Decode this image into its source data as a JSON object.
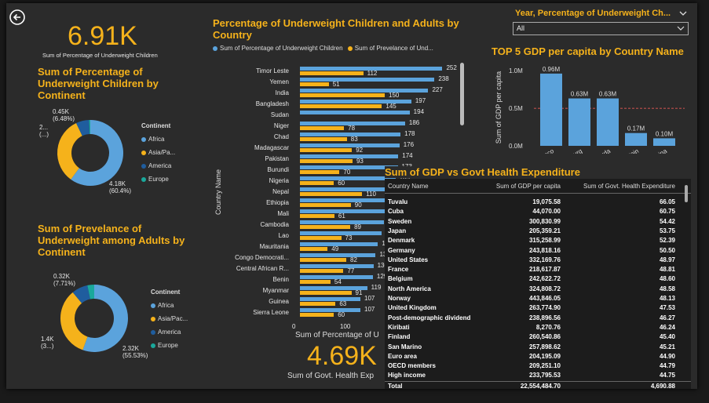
{
  "kpi_top": {
    "value": "6.91K",
    "label": "Sum of Percentage of Underweight Children"
  },
  "kpi_bottom": {
    "value": "4.69K",
    "label": "Sum of Govt. Health Exp"
  },
  "donut1": {
    "title": "Sum of Percentage of Underweight Children by Continent",
    "legend_title": "Continent",
    "legend": [
      "Africa",
      "Asia/Pa...",
      "America",
      "Europe"
    ],
    "labels": {
      "africa": "4.18K\n(60.4%)",
      "asia": "2...\n(...)",
      "america": "0.45K\n(6.48%)"
    },
    "label_africa_1": "4.18K",
    "label_africa_2": "(60.4%)",
    "label_asia_1": "2...",
    "label_asia_2": "(...)",
    "label_america_1": "0.45K",
    "label_america_2": "(6.48%)",
    "colors": {
      "Africa": "#5ba3dc",
      "Asia": "#f5b21b",
      "America": "#1f5d9e",
      "Europe": "#1aa89b"
    },
    "values": [
      60.4,
      33.12,
      6.48,
      0.0
    ]
  },
  "donut2": {
    "title": "Sum of Prevelance of Underweight among Adults by Continent",
    "legend_title": "Continent",
    "legend": [
      "Africa",
      "Asia/Pac...",
      "America",
      "Europe"
    ],
    "label_africa_1": "2.32K",
    "label_africa_2": "(55.53%)",
    "label_asia_1": "1.4K",
    "label_asia_2": "(3...)",
    "label_america_1": "0.32K",
    "label_america_2": "(7.71%)",
    "values": [
      55.53,
      33.5,
      7.71,
      3.26
    ]
  },
  "bar_chart": {
    "title": "Percentage of Underweight Children and Adults by Country",
    "legend": [
      "Sum of Percentage of Underweight Children",
      "Sum of Prevelance of Und..."
    ],
    "y_axis_title": "Country Name",
    "x_axis_title": "Sum of Percentage of U",
    "x_ticks": [
      "0",
      "100"
    ]
  },
  "chart_data": [
    {
      "type": "bar",
      "title": "Percentage of Underweight Children and Adults by Country",
      "categories": [
        "Timor Leste",
        "Yemen",
        "India",
        "Bangladesh",
        "Sudan",
        "Niger",
        "Chad",
        "Madagascar",
        "Pakistan",
        "Burundi",
        "Nigeria",
        "Nepal",
        "Ethiopia",
        "Mali",
        "Cambodia",
        "Lao",
        "Mauritania",
        "Congo Democrati...",
        "Central African R...",
        "Benin",
        "Myanmar",
        "Guinea",
        "Sierra Leone"
      ],
      "series": [
        {
          "name": "Sum of Percentage of Underweight Children",
          "values": [
            252,
            238,
            227,
            197,
            194,
            186,
            178,
            176,
            174,
            173,
            169,
            165,
            160,
            156,
            148,
            144,
            138,
            134,
            130,
            129,
            119,
            107,
            107
          ]
        },
        {
          "name": "Sum of Prevelance of Und...",
          "values": [
            112,
            51,
            150,
            145,
            null,
            78,
            83,
            92,
            93,
            70,
            60,
            110,
            90,
            61,
            89,
            73,
            49,
            82,
            77,
            54,
            91,
            63,
            60
          ]
        }
      ],
      "xlabel": "Sum of Percentage of U",
      "ylabel": "Country Name"
    },
    {
      "type": "bar",
      "title": "TOP 5 GDP per capita by Country Name",
      "categories": [
        "Monaco",
        "Luxembourg",
        "Bermuda",
        "Liechtenstein",
        "China"
      ],
      "values": [
        0.96,
        0.63,
        0.63,
        0.17,
        0.1
      ],
      "value_labels": [
        "0.96M",
        "0.63M",
        "0.63M",
        "0.17M",
        "0.10M"
      ],
      "ylabel": "Sum of GDP per capita",
      "y_ticks": [
        "0.0M",
        "0.5M",
        "1.0M"
      ],
      "ylim": [
        0,
        1.0
      ]
    }
  ],
  "gdp_chart": {
    "title": "TOP 5 GDP per capita by Country Name",
    "y_axis_title": "Sum of GDP per capita",
    "x_labels": [
      "onaco",
      "mbourg",
      "rmuda",
      "enstein",
      "China"
    ],
    "avg_color": "#c0504d"
  },
  "filter": {
    "title": "Year, Percentage of Underweight Ch...",
    "value": "All"
  },
  "table": {
    "title": "Sum of GDP vs Govt Health Expenditure",
    "headers": [
      "Country Name",
      "Sum of GDP per capita",
      "Sum of Govt. Health Expenditure"
    ],
    "rows": [
      [
        "Tuvalu",
        "19,075.58",
        "66.05"
      ],
      [
        "Cuba",
        "44,070.00",
        "60.75"
      ],
      [
        "Sweden",
        "300,830.99",
        "54.42"
      ],
      [
        "Japan",
        "205,359.21",
        "53.75"
      ],
      [
        "Denmark",
        "315,258.99",
        "52.39"
      ],
      [
        "Germany",
        "243,818.16",
        "50.50"
      ],
      [
        "United States",
        "332,169.76",
        "48.97"
      ],
      [
        "France",
        "218,617.87",
        "48.81"
      ],
      [
        "Belgium",
        "242,622.72",
        "48.60"
      ],
      [
        "North America",
        "324,808.72",
        "48.58"
      ],
      [
        "Norway",
        "443,846.05",
        "48.13"
      ],
      [
        "United Kingdom",
        "263,774.90",
        "47.53"
      ],
      [
        "Post-demographic dividend",
        "238,896.56",
        "46.27"
      ],
      [
        "Kiribati",
        "8,270.76",
        "46.24"
      ],
      [
        "Finland",
        "260,540.86",
        "45.40"
      ],
      [
        "San Marino",
        "257,898.62",
        "45.21"
      ],
      [
        "Euro area",
        "204,195.09",
        "44.90"
      ],
      [
        "OECD members",
        "209,251.10",
        "44.79"
      ],
      [
        "High income",
        "233,795.53",
        "44.75"
      ]
    ],
    "total": [
      "Total",
      "22,554,484.70",
      "4,690.88"
    ]
  }
}
